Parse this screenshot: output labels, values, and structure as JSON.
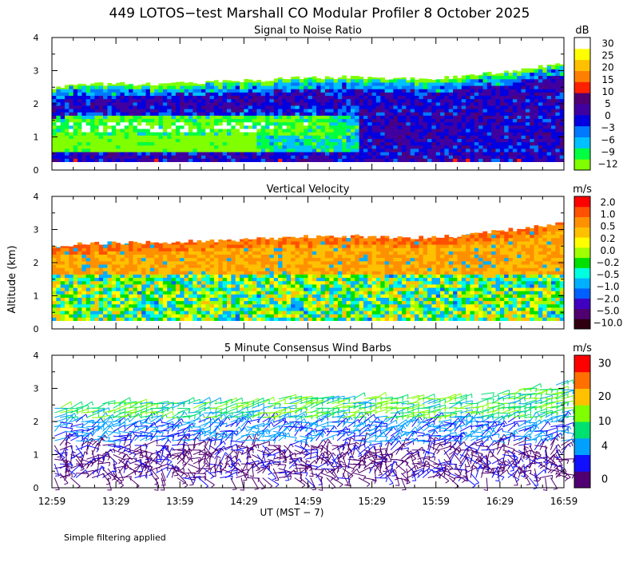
{
  "title": "449 LOTOS−test Marshall CO Modular Profiler  8 October 2025",
  "footnote": "Simple filtering applied",
  "shared_ylabel": "Altitude (km)",
  "x_axis": {
    "ticks": [
      "12:59",
      "13:29",
      "13:59",
      "14:29",
      "14:59",
      "15:29",
      "15:59",
      "16:29",
      "16:59"
    ],
    "label": "UT  (MST − 7)"
  },
  "colors": {
    "snr": [
      "#80ff00",
      "#00ff40",
      "#00c0ff",
      "#0078ff",
      "#0000e0",
      "#4000a0",
      "#500070",
      "#ff2000",
      "#ff8000",
      "#ffc000",
      "#ffff00",
      "#ffffff"
    ],
    "vv": [
      "#300010",
      "#500070",
      "#4000c0",
      "#0060ff",
      "#00b0ff",
      "#00ffe0",
      "#00e000",
      "#a0ff00",
      "#ffff00",
      "#ffc000",
      "#ff9000",
      "#ff5000",
      "#ff0000"
    ],
    "wind": [
      "#500070",
      "#1010ff",
      "#00a0ff",
      "#00e070",
      "#80ff00",
      "#ffc000",
      "#ff7000",
      "#ff0000"
    ]
  },
  "chart_data": [
    {
      "type": "heatmap",
      "title": "Signal to Noise Ratio",
      "ylabel": "Altitude (km)",
      "ylim": [
        0,
        4
      ],
      "yticks": [
        "0",
        "1",
        "2",
        "3",
        "4"
      ],
      "colorbar_unit": "dB",
      "colorbar_labels": [
        "−12",
        "−9",
        "−6",
        "−3",
        "0",
        "5",
        "10",
        "15",
        "20",
        "25",
        "30"
      ],
      "data_top_km": [
        2.5,
        2.6,
        2.6,
        2.65,
        2.7,
        2.8,
        2.8,
        2.75,
        2.8,
        3.0,
        3.2
      ],
      "data_bottom_km": 0.25
    },
    {
      "type": "heatmap",
      "title": "Vertical Velocity",
      "ylabel": "Altitude (km)",
      "ylim": [
        0,
        4
      ],
      "yticks": [
        "0",
        "1",
        "2",
        "3",
        "4"
      ],
      "colorbar_unit": "m/s",
      "colorbar_labels": [
        "−10.0",
        "−5.0",
        "−2.0",
        "−1.0",
        "−0.5",
        "−0.2",
        "0.0",
        "0.2",
        "0.5",
        "1.0",
        "2.0"
      ],
      "data_top_km": [
        2.5,
        2.6,
        2.6,
        2.65,
        2.7,
        2.8,
        2.8,
        2.75,
        2.8,
        3.0,
        3.2
      ],
      "data_bottom_km": 0.25
    },
    {
      "type": "scatter",
      "title": "5 Minute Consensus Wind Barbs",
      "ylabel": "Altitude (km)",
      "ylim": [
        0,
        4
      ],
      "yticks": [
        "0",
        "1",
        "2",
        "3",
        "4"
      ],
      "colorbar_unit": "m/s",
      "colorbar_labels": [
        "0",
        "4",
        "10",
        "20",
        "30"
      ],
      "gate_spacing_km": 0.1,
      "data_bottom_km": 0.25
    }
  ]
}
